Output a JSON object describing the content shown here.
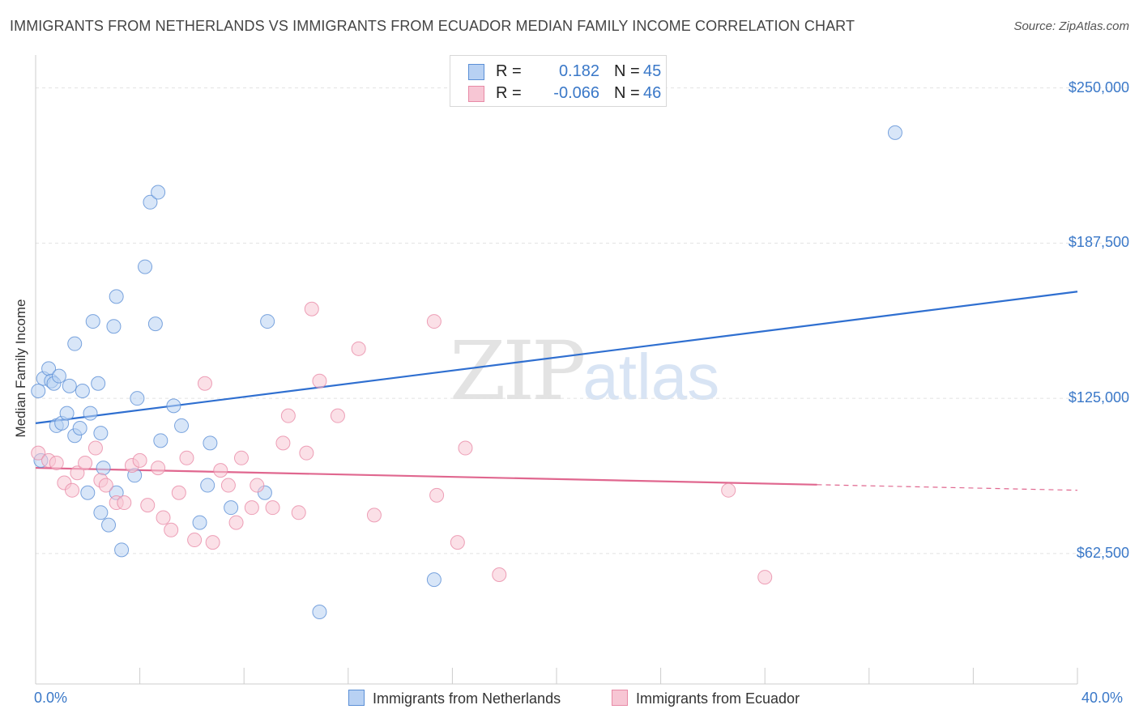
{
  "header": {
    "title": "IMMIGRANTS FROM NETHERLANDS VS IMMIGRANTS FROM ECUADOR MEDIAN FAMILY INCOME CORRELATION CHART",
    "source": "Source: ZipAtlas.com"
  },
  "watermark": {
    "zip": "ZIP",
    "atlas": "atlas"
  },
  "legend": {
    "r_label": "R =",
    "n_label": "N =",
    "rows": [
      {
        "r": "0.182",
        "n": "45"
      },
      {
        "r": "-0.066",
        "n": "46"
      }
    ]
  },
  "colors": {
    "netherlands_fill": "#b8d1f3",
    "netherlands_stroke": "#5b8fd6",
    "netherlands_line": "#2f6fd0",
    "ecuador_fill": "#f7c6d4",
    "ecuador_stroke": "#e88aa6",
    "ecuador_line": "#e0678f",
    "tick_label": "#3a78c8",
    "grid": "#e2e2e2"
  },
  "chart_data": {
    "type": "scatter",
    "title": "IMMIGRANTS FROM NETHERLANDS VS IMMIGRANTS FROM ECUADOR MEDIAN FAMILY INCOME CORRELATION CHART",
    "xlabel": "",
    "ylabel": "Median Family Income",
    "xlim": [
      0,
      40
    ],
    "ylim": [
      10000,
      260000
    ],
    "x_tick_labels": [
      "0.0%",
      "40.0%"
    ],
    "y_ticks": [
      62500,
      125000,
      187500,
      250000
    ],
    "y_tick_labels": [
      "$62,500",
      "$125,000",
      "$187,500",
      "$250,000"
    ],
    "grid": "horizontal dashed",
    "legend_position": "bottom-center",
    "series": [
      {
        "name": "Immigrants from Netherlands",
        "trend": {
          "x": [
            0,
            40
          ],
          "y": [
            115000,
            168000
          ],
          "solid_until": 40
        },
        "points": [
          [
            0.2,
            100000
          ],
          [
            0.1,
            128000
          ],
          [
            0.3,
            133000
          ],
          [
            0.5,
            137000
          ],
          [
            0.6,
            132000
          ],
          [
            0.7,
            131000
          ],
          [
            0.8,
            114000
          ],
          [
            0.9,
            134000
          ],
          [
            1.0,
            115000
          ],
          [
            1.2,
            119000
          ],
          [
            1.3,
            130000
          ],
          [
            1.5,
            110000
          ],
          [
            1.5,
            147000
          ],
          [
            1.7,
            113000
          ],
          [
            1.8,
            128000
          ],
          [
            2.0,
            87000
          ],
          [
            2.1,
            119000
          ],
          [
            2.2,
            156000
          ],
          [
            2.4,
            131000
          ],
          [
            2.5,
            111000
          ],
          [
            2.5,
            79000
          ],
          [
            2.6,
            97000
          ],
          [
            2.8,
            74000
          ],
          [
            3.0,
            154000
          ],
          [
            3.1,
            87000
          ],
          [
            3.1,
            166000
          ],
          [
            3.3,
            64000
          ],
          [
            3.8,
            94000
          ],
          [
            3.9,
            125000
          ],
          [
            4.2,
            178000
          ],
          [
            4.4,
            204000
          ],
          [
            4.6,
            155000
          ],
          [
            4.7,
            208000
          ],
          [
            4.8,
            108000
          ],
          [
            5.3,
            122000
          ],
          [
            5.6,
            114000
          ],
          [
            6.3,
            75000
          ],
          [
            6.6,
            90000
          ],
          [
            6.7,
            107000
          ],
          [
            7.5,
            81000
          ],
          [
            8.8,
            87000
          ],
          [
            8.9,
            156000
          ],
          [
            10.9,
            39000
          ],
          [
            15.3,
            52000
          ],
          [
            33.0,
            232000
          ]
        ]
      },
      {
        "name": "Immigrants from Ecuador",
        "trend": {
          "x": [
            0,
            40
          ],
          "y": [
            97000,
            88000
          ],
          "solid_until": 30
        },
        "points": [
          [
            0.1,
            103000
          ],
          [
            0.5,
            100000
          ],
          [
            0.8,
            99000
          ],
          [
            1.1,
            91000
          ],
          [
            1.4,
            88000
          ],
          [
            1.6,
            95000
          ],
          [
            1.9,
            99000
          ],
          [
            2.3,
            105000
          ],
          [
            2.5,
            92000
          ],
          [
            2.7,
            90000
          ],
          [
            3.1,
            83000
          ],
          [
            3.4,
            83000
          ],
          [
            3.7,
            98000
          ],
          [
            4.0,
            100000
          ],
          [
            4.3,
            82000
          ],
          [
            4.7,
            97000
          ],
          [
            4.9,
            77000
          ],
          [
            5.2,
            72000
          ],
          [
            5.5,
            87000
          ],
          [
            5.8,
            101000
          ],
          [
            6.1,
            68000
          ],
          [
            6.5,
            131000
          ],
          [
            6.8,
            67000
          ],
          [
            7.1,
            96000
          ],
          [
            7.4,
            90000
          ],
          [
            7.7,
            75000
          ],
          [
            7.9,
            101000
          ],
          [
            8.3,
            81000
          ],
          [
            8.5,
            90000
          ],
          [
            9.1,
            81000
          ],
          [
            9.5,
            107000
          ],
          [
            9.7,
            118000
          ],
          [
            10.1,
            79000
          ],
          [
            10.4,
            103000
          ],
          [
            10.6,
            161000
          ],
          [
            10.9,
            132000
          ],
          [
            11.6,
            118000
          ],
          [
            12.4,
            145000
          ],
          [
            13.0,
            78000
          ],
          [
            15.3,
            156000
          ],
          [
            15.4,
            86000
          ],
          [
            16.2,
            67000
          ],
          [
            16.5,
            105000
          ],
          [
            17.8,
            54000
          ],
          [
            26.6,
            88000
          ],
          [
            28.0,
            53000
          ]
        ]
      }
    ]
  }
}
